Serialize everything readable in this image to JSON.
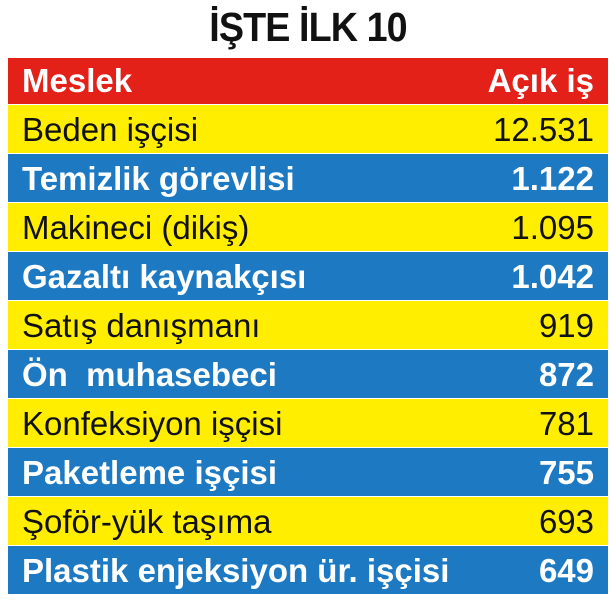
{
  "title": "İŞTE İLK 10",
  "chart_data": {
    "type": "table",
    "columns": [
      "Meslek",
      "Açık iş"
    ],
    "rows": [
      {
        "name": "Beden işçisi",
        "value": "12.531"
      },
      {
        "name": "Temizlik görevlisi",
        "value": "1.122"
      },
      {
        "name": "Makineci (dikiş)",
        "value": "1.095"
      },
      {
        "name": "Gazaltı kaynakçısı",
        "value": "1.042"
      },
      {
        "name": "Satış danışmanı",
        "value": "919"
      },
      {
        "name": "Ön  muhasebeci",
        "value": "872"
      },
      {
        "name": "Konfeksiyon işçisi",
        "value": "781"
      },
      {
        "name": "Paketleme işçisi",
        "value": "755"
      },
      {
        "name": "Şoför-yük taşıma",
        "value": "693"
      },
      {
        "name": "Plastik enjeksiyon ür. işçisi",
        "value": "649"
      }
    ]
  },
  "colors": {
    "header": "#e32119",
    "yellow_row": "#ffee00",
    "blue_row": "#1d7ac2"
  }
}
